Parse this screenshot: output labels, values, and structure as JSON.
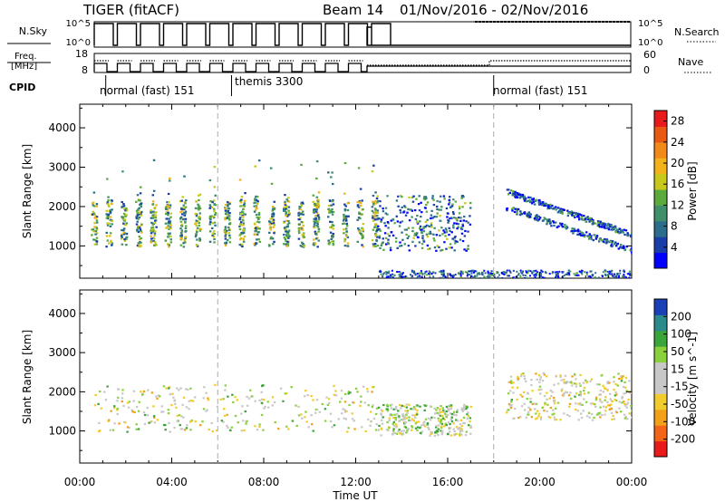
{
  "header": {
    "title": "TIGER (fitACF)",
    "beam": "Beam 14",
    "date_range": "01/Nov/2016 - 02/Nov/2016"
  },
  "nsky_panel": {
    "left_label": "N.Sky",
    "left_ticks": [
      "10^5",
      "10^0"
    ],
    "right_label": "N.Search",
    "right_ticks": [
      "10^5",
      "10^0"
    ]
  },
  "freq_panel": {
    "left_label_line1": "Freq.",
    "left_label_line2": "[MHz]",
    "left_ticks": [
      "18",
      "8"
    ],
    "right_label": "Nave",
    "right_ticks": [
      "60",
      "0"
    ]
  },
  "cpid": {
    "label": "CPID",
    "modes": [
      {
        "name": "normal (fast) 151",
        "start_hour": 0.5
      },
      {
        "name": "themis 3300",
        "start_hour": 6.6
      },
      {
        "name": "normal (fast) 151",
        "start_hour": 18.0
      }
    ]
  },
  "time_axis": {
    "label": "Time UT",
    "ticks": [
      "00:00",
      "04:00",
      "08:00",
      "12:00",
      "16:00",
      "20:00",
      "00:00"
    ]
  },
  "chart_data": [
    {
      "type": "heatmap",
      "title": "Power",
      "ylabel": "Slant Range [km]",
      "xlabel": "",
      "x_range_hours": [
        0,
        24
      ],
      "ylim": [
        180,
        4600
      ],
      "yticks": [
        1000,
        2000,
        3000,
        4000
      ],
      "colorbar": {
        "label": "Power [dB]",
        "ticks": [
          "4",
          "8",
          "12",
          "16",
          "20",
          "24",
          "28"
        ],
        "range": [
          0,
          30
        ],
        "colors": [
          "#0000ff",
          "#1a3ea8",
          "#2a6e8c",
          "#3f8f6a",
          "#5aaa3c",
          "#c8c81a",
          "#f2b21a",
          "#f28a1a",
          "#e85a14",
          "#e81a1a"
        ]
      },
      "features": [
        {
          "hour_range": [
            0.6,
            12.8
          ],
          "range_km": [
            1000,
            2200
          ],
          "value_db": 12,
          "note": "periodic scans"
        },
        {
          "hour_range": [
            12.8,
            17.0
          ],
          "range_km": [
            900,
            2300
          ],
          "value_db": 8
        },
        {
          "hour_range": [
            18.5,
            24.0
          ],
          "range_km": [
            1300,
            2400
          ],
          "value_db": 6,
          "note": "descending streak"
        },
        {
          "hour_range": [
            13.0,
            24.0
          ],
          "range_km": [
            200,
            400
          ],
          "value_db": 6,
          "note": "near-range echoes"
        }
      ]
    },
    {
      "type": "heatmap",
      "title": "Velocity",
      "ylabel": "Slant Range [km]",
      "xlabel": "Time UT",
      "x_range_hours": [
        0,
        24
      ],
      "ylim": [
        180,
        4600
      ],
      "yticks": [
        1000,
        2000,
        3000,
        4000
      ],
      "colorbar": {
        "label": "Velocity [m s^-1]",
        "ticks": [
          "200",
          "100",
          "50",
          "15",
          "-15",
          "-50",
          "-100",
          "-200"
        ],
        "range": [
          -250,
          250
        ],
        "colors": [
          "#e81a1a",
          "#f26418",
          "#f2a018",
          "#f2cc2a",
          "#c8c8c8",
          "#c8c8c8",
          "#8ad13c",
          "#3aa63a",
          "#2a8a8c",
          "#1a40b8"
        ]
      },
      "features": [
        {
          "hour_range": [
            0.6,
            12.8
          ],
          "range_km": [
            1000,
            2200
          ],
          "value_ms": 0,
          "note": "mostly low velocity"
        },
        {
          "hour_range": [
            12.8,
            17.0
          ],
          "range_km": [
            900,
            1700
          ],
          "value_ms": 30
        },
        {
          "hour_range": [
            18.5,
            24.0
          ],
          "range_km": [
            1300,
            2500
          ],
          "value_ms": -10
        }
      ]
    }
  ]
}
